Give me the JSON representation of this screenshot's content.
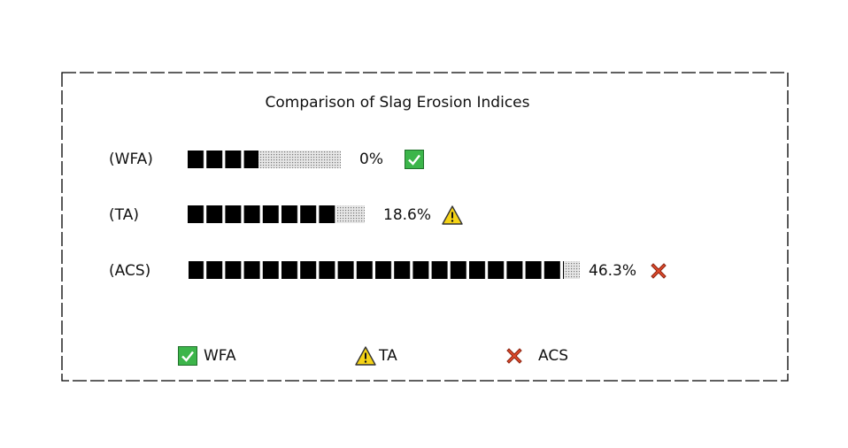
{
  "title": "Comparison of Slag Erosion Indices",
  "rows": [
    {
      "label": "(WFA)",
      "value": "0%"
    },
    {
      "label": "(TA)",
      "value": "18.6%"
    },
    {
      "label": "(ACS)",
      "value": "46.3%"
    }
  ],
  "legend": [
    "WFA",
    "TA",
    "ACS"
  ]
}
